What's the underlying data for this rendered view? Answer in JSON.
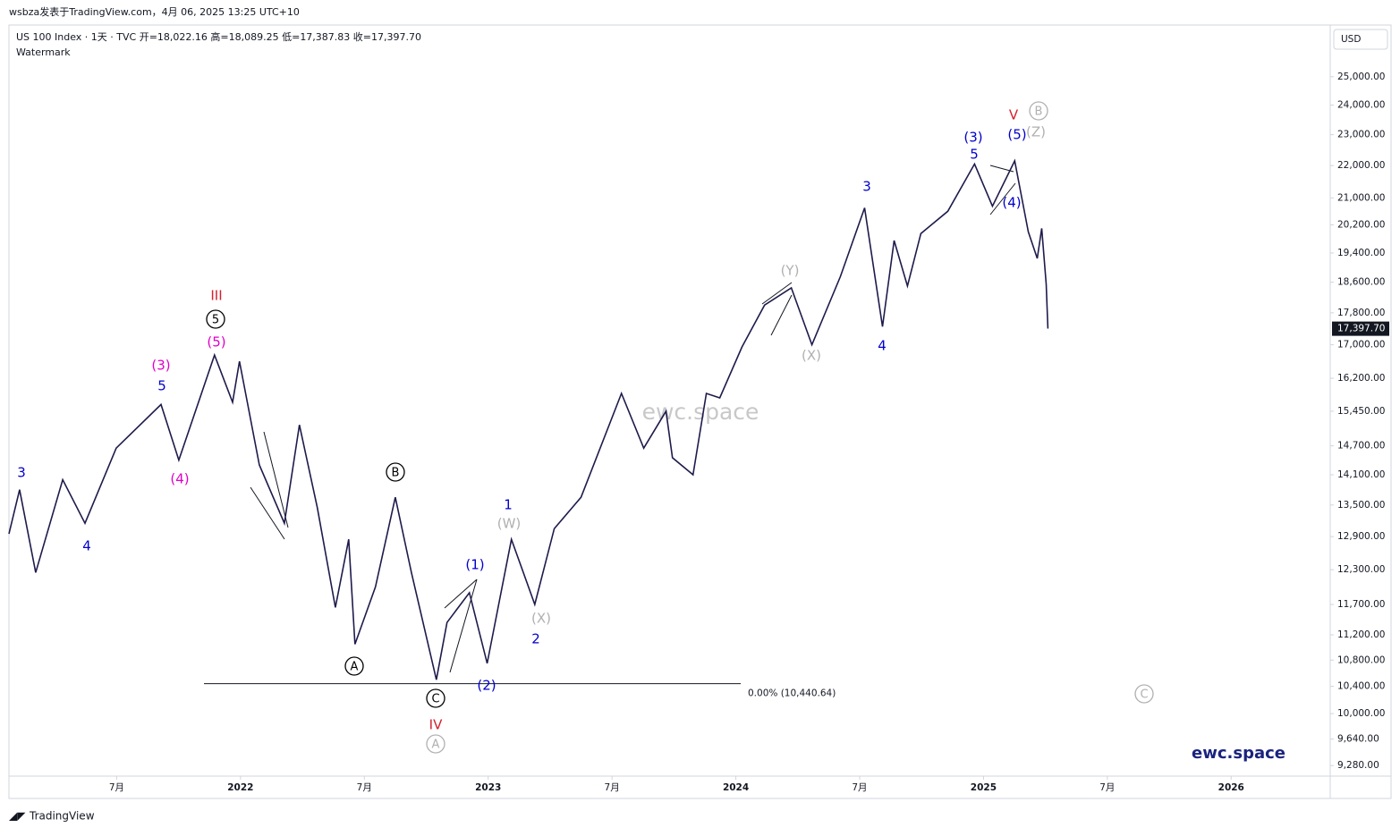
{
  "header": {
    "byline": "wsbza发表于TradingView.com，4月 06, 2025 13:25 UTC+10",
    "footer": "TradingView"
  },
  "chart_data": {
    "type": "line",
    "title": "US 100 Index · 1天 · TVC  开=18,022.16  高=18,089.25  低=17,387.83  收=17,397.70",
    "subtitle": "Watermark",
    "currency": "USD",
    "color": "#1e1b4b",
    "log_scale": true,
    "x": [
      2021.065,
      2021.108,
      2021.173,
      2021.282,
      2021.372,
      2021.498,
      2021.679,
      2021.751,
      2021.895,
      2021.968,
      2021.996,
      2022.076,
      2022.177,
      2022.238,
      2022.31,
      2022.383,
      2022.437,
      2022.462,
      2022.545,
      2022.625,
      2022.69,
      2022.791,
      2022.834,
      2022.924,
      2022.996,
      2023.094,
      2023.188,
      2023.267,
      2023.375,
      2023.538,
      2023.628,
      2023.718,
      2023.744,
      2023.827,
      2023.881,
      2023.935,
      2024.025,
      2024.116,
      2024.224,
      2024.307,
      2024.422,
      2024.52,
      2024.592,
      2024.639,
      2024.693,
      2024.747,
      2024.856,
      2024.964,
      2025.036,
      2025.126,
      2025.181,
      2025.217,
      2025.235,
      2025.253,
      2025.26
    ],
    "values": [
      12950,
      13800,
      12250,
      14000,
      13150,
      14650,
      15600,
      14400,
      16750,
      15650,
      16600,
      14300,
      13150,
      15150,
      13450,
      11650,
      12850,
      11050,
      12000,
      13650,
      12250,
      10500,
      11400,
      11900,
      10750,
      12850,
      11700,
      13050,
      13650,
      15850,
      14650,
      15450,
      14450,
      14100,
      15850,
      15750,
      16950,
      18000,
      18450,
      17000,
      18750,
      20700,
      17450,
      19750,
      18500,
      19950,
      20600,
      22050,
      20750,
      22150,
      20000,
      19250,
      20100,
      18550,
      17400
    ],
    "xlim": [
      2021.065,
      2026.4
    ],
    "xticks": [
      {
        "value": 2021.5,
        "label": "7月"
      },
      2022,
      {
        "value": 2022.5,
        "label": "7月"
      },
      2023,
      {
        "value": 2023.5,
        "label": "7月"
      },
      2024,
      {
        "value": 2024.5,
        "label": "7月"
      },
      2025,
      {
        "value": 2025.5,
        "label": "7月"
      },
      2026
    ],
    "ylim": [
      9140,
      26860
    ],
    "yticks": [
      {
        "value": 25000,
        "label": "25,000.00"
      },
      {
        "value": 24000,
        "label": "24,000.00"
      },
      {
        "value": 23000,
        "label": "23,000.00"
      },
      {
        "value": 22000,
        "label": "22,000.00"
      },
      {
        "value": 21000,
        "label": "21,000.00"
      },
      {
        "value": 20200,
        "label": "20,200.00"
      },
      {
        "value": 19400,
        "label": "19,400.00"
      },
      {
        "value": 18600,
        "label": "18,600.00"
      },
      {
        "value": 17800,
        "label": "17,800.00"
      },
      {
        "value": 17000,
        "label": "17,000.00"
      },
      {
        "value": 16200,
        "label": "16,200.00"
      },
      {
        "value": 15450,
        "label": "15,450.00"
      },
      {
        "value": 14700,
        "label": "14,700.00"
      },
      {
        "value": 14100,
        "label": "14,100.00"
      },
      {
        "value": 13500,
        "label": "13,500.00"
      },
      {
        "value": 12900,
        "label": "12,900.00"
      },
      {
        "value": 12300,
        "label": "12,300.00"
      },
      {
        "value": 11700,
        "label": "11,700.00"
      },
      {
        "value": 11200,
        "label": "11,200.00"
      },
      {
        "value": 10800,
        "label": "10,800.00"
      },
      {
        "value": 10400,
        "label": "10,400.00"
      },
      {
        "value": 10000,
        "label": "10,000.00"
      },
      {
        "value": 9640,
        "label": "9,640.00"
      },
      {
        "value": 9280,
        "label": "9,280.00"
      }
    ],
    "last_price": {
      "value": 17397.7,
      "label": "17,397.70"
    },
    "fib_level": {
      "value": 10440.64,
      "label": "0.00% (10,440.64)"
    },
    "watermark": "ewc.space",
    "annotations": [
      {
        "text": "3",
        "color": "#0000cc"
      },
      {
        "text": "4",
        "color": "#0000cc"
      },
      {
        "text": "5",
        "color": "#0000cc"
      },
      {
        "text": "(3)",
        "color": "#e000c8"
      },
      {
        "text": "(4)",
        "color": "#e000c8"
      },
      {
        "text": "(5)",
        "color": "#e000c8"
      },
      {
        "text": "5",
        "color": "#000000",
        "circled": true
      },
      {
        "text": "III",
        "color": "#d4202c"
      },
      {
        "text": "A",
        "color": "#000000",
        "circled": true
      },
      {
        "text": "B",
        "color": "#000000",
        "circled": true
      },
      {
        "text": "C",
        "color": "#000000",
        "circled": true
      },
      {
        "text": "IV",
        "color": "#d4202c"
      },
      {
        "text": "A",
        "color": "#b0b0b0",
        "circled": true
      },
      {
        "text": "(1)",
        "color": "#0000cc"
      },
      {
        "text": "(2)",
        "color": "#0000cc"
      },
      {
        "text": "1",
        "color": "#0000cc"
      },
      {
        "text": "(W)",
        "color": "#b0b0b0"
      },
      {
        "text": "(X)",
        "color": "#b0b0b0"
      },
      {
        "text": "2",
        "color": "#0000cc"
      },
      {
        "text": "(Y)",
        "color": "#b0b0b0"
      },
      {
        "text": "(X)",
        "color": "#b0b0b0"
      },
      {
        "text": "3",
        "color": "#0000cc"
      },
      {
        "text": "4",
        "color": "#0000cc"
      },
      {
        "text": "(3)",
        "color": "#0000cc"
      },
      {
        "text": "5",
        "color": "#0000cc"
      },
      {
        "text": "(4)",
        "color": "#0000cc"
      },
      {
        "text": "(5)",
        "color": "#0000cc"
      },
      {
        "text": "V",
        "color": "#d4202c"
      },
      {
        "text": "B",
        "color": "#b0b0b0",
        "circled": true
      },
      {
        "text": "(Z)",
        "color": "#b0b0b0"
      },
      {
        "text": "C",
        "color": "#b0b0b0",
        "circled": true
      }
    ]
  }
}
